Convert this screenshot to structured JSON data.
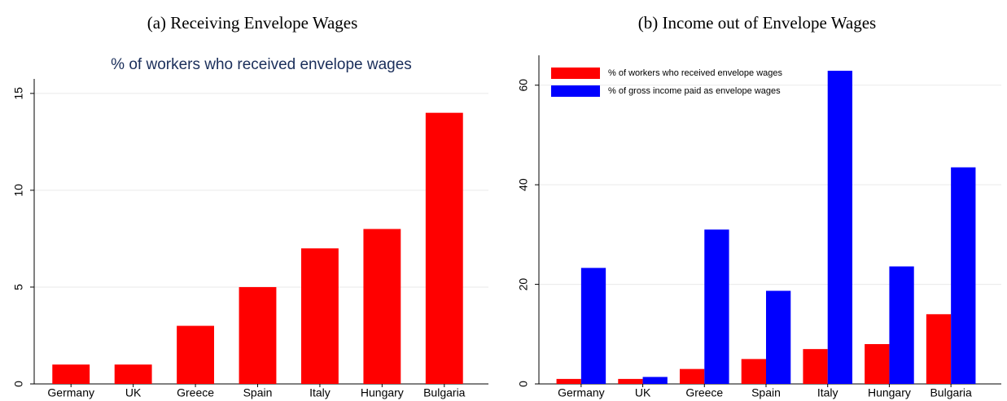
{
  "chart_data": [
    {
      "type": "bar",
      "title": "(a) Receiving Envelope Wages",
      "subtitle": "% of workers who received envelope wages",
      "categories": [
        "Germany",
        "UK",
        "Greece",
        "Spain",
        "Italy",
        "Hungary",
        "Bulgaria"
      ],
      "values": [
        1,
        1,
        3,
        5,
        7,
        8,
        14
      ],
      "color": "#ff0000",
      "ylim": [
        0,
        15.75
      ],
      "yticks": [
        0,
        5,
        10,
        15
      ],
      "grid": true
    },
    {
      "type": "bar",
      "title": "(b) Income out of Envelope Wages",
      "categories": [
        "Germany",
        "UK",
        "Greece",
        "Spain",
        "Italy",
        "Hungary",
        "Bulgaria"
      ],
      "series": [
        {
          "name": "% of workers who received envelope wages",
          "color": "#ff0000",
          "values": [
            1,
            1,
            3,
            5,
            7,
            8,
            14
          ]
        },
        {
          "name": "% of gross income paid as envelope wages",
          "color": "#0000ff",
          "values": [
            23.3,
            1.4,
            31,
            18.7,
            62.9,
            23.6,
            43.5
          ]
        }
      ],
      "ylim": [
        0,
        66
      ],
      "yticks": [
        0,
        20,
        40,
        60
      ],
      "grid": true,
      "legend": "top-left"
    }
  ]
}
